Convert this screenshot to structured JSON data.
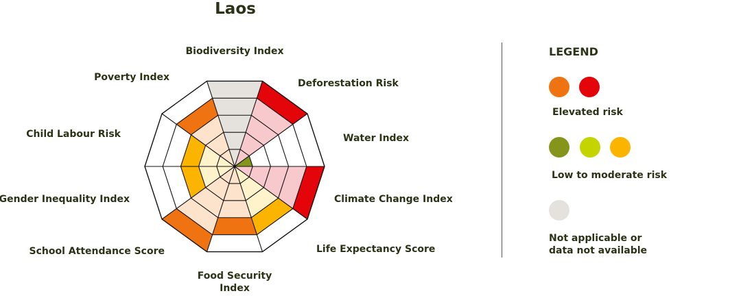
{
  "title": "Laos",
  "chart_data": {
    "type": "radar",
    "title": "Laos",
    "categories": [
      "Biodiversity Index",
      "Deforestation Risk",
      "Water Index",
      "Climate Change Index",
      "Life Expectancy Score",
      "Food Security Index",
      "School Attendance Score",
      "Gender Inequality Index",
      "Child Labour Risk",
      "Poverty Index"
    ],
    "label_lines": [
      [
        "Biodiversity Index"
      ],
      [
        "Deforestation Risk"
      ],
      [
        "Water Index"
      ],
      [
        "Climate Change Index"
      ],
      [
        "Life Expectancy Score"
      ],
      [
        "Food Security",
        "Index"
      ],
      [
        "School Attendance Score"
      ],
      [
        "Gender Inequality Index"
      ],
      [
        "Child Labour Risk"
      ],
      [
        "Poverty Index"
      ]
    ],
    "levels": [
      5,
      5,
      1,
      5,
      4,
      4,
      5,
      3,
      3,
      4
    ],
    "scale_max": 5,
    "risk": [
      "na",
      "red",
      "olive",
      "red",
      "amber",
      "orange",
      "orange",
      "amber",
      "amber",
      "orange"
    ]
  },
  "colors": {
    "red": "#e3050a",
    "red_light": "#f7c9cd",
    "orange": "#f07312",
    "orange_light": "#fde3cc",
    "amber": "#fbb500",
    "amber_light": "#fff3cc",
    "olive": "#85951c",
    "lime": "#c3d400",
    "na": "#e5e2dd",
    "na_light": "#e5e2dd",
    "text": "#2b3316"
  },
  "legend": {
    "title": "LEGEND",
    "elevated_label": "Elevated risk",
    "low_label": "Low to moderate risk",
    "na_label_line1": "Not applicable or",
    "na_label_line2": "data not available"
  }
}
